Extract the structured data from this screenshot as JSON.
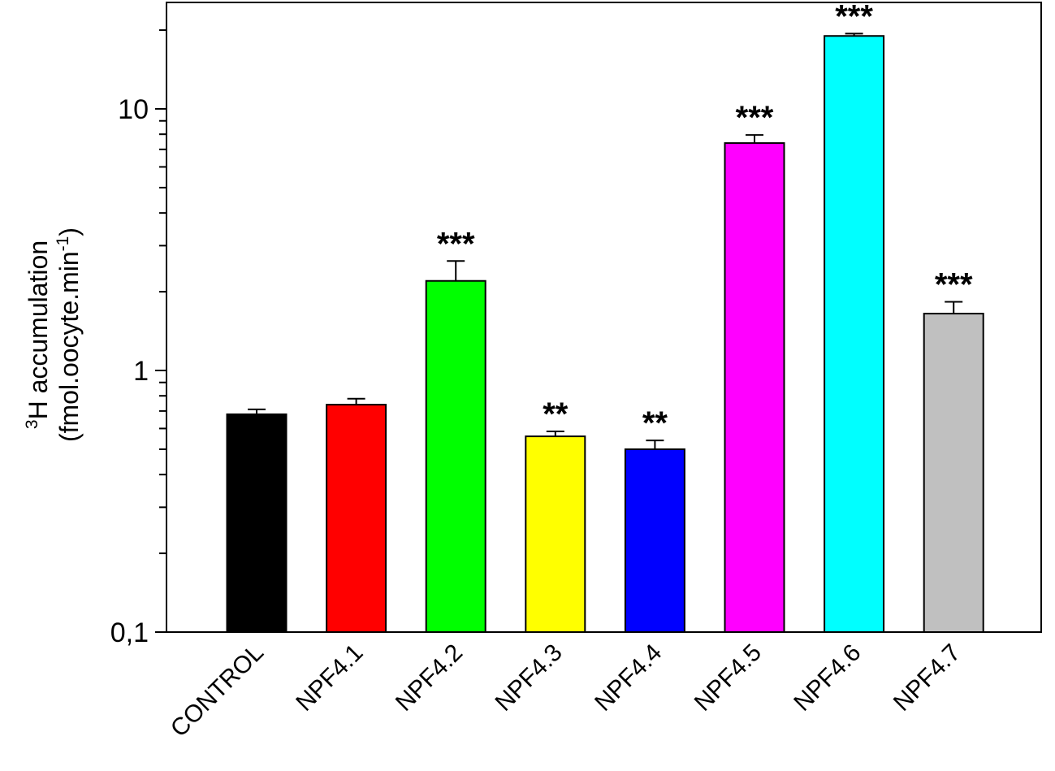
{
  "chart_data": {
    "type": "bar",
    "scale": "log",
    "ylim": [
      0.1,
      25
    ],
    "yticks": [
      {
        "value": 0.1,
        "label": "0,1"
      },
      {
        "value": 1,
        "label": "1"
      },
      {
        "value": 10,
        "label": "10"
      }
    ],
    "ylabel_line1_sup": "3",
    "ylabel_line1": "H accumulation",
    "ylabel_line2_pre": "(fmol.oocyte.min",
    "ylabel_line2_sup": "-1",
    "ylabel_line2_post": ")",
    "grid": false,
    "categories": [
      "CONTROL",
      "NPF4.1",
      "NPF4.2",
      "NPF4.3",
      "NPF4.4",
      "NPF4.5",
      "NPF4.6",
      "NPF4.7"
    ],
    "values": [
      0.68,
      0.74,
      2.2,
      0.56,
      0.5,
      7.4,
      19.0,
      1.65
    ],
    "errors": [
      0.03,
      0.04,
      0.42,
      0.025,
      0.04,
      0.55,
      0.4,
      0.18
    ],
    "significance": [
      "",
      "",
      "***",
      "**",
      "**",
      "***",
      "***",
      "***"
    ],
    "colors": [
      "#000000",
      "#ff0000",
      "#00ff00",
      "#ffff00",
      "#0000ff",
      "#ff00ff",
      "#00ffff",
      "#c0c0c0"
    ]
  }
}
